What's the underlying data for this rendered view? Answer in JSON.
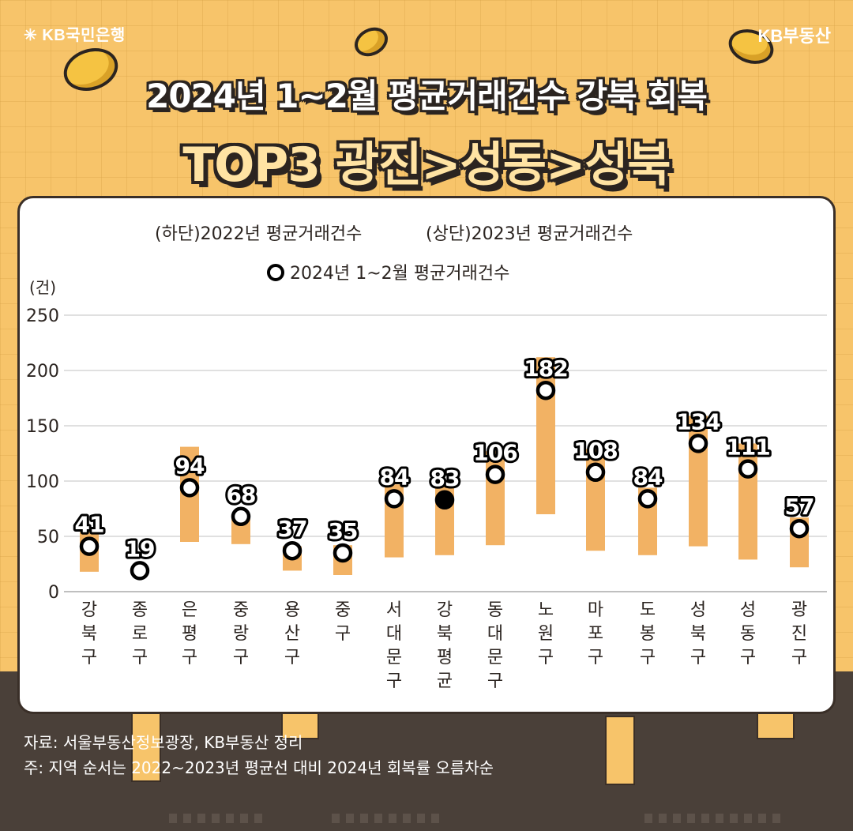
{
  "header": {
    "brand_left": "KB국민은행",
    "brand_right": "KB부동산",
    "title_line1": "2024년 1~2월 평균거래건수 강북 회복",
    "title_line2": "TOP3 광진>성동>성북"
  },
  "footer": {
    "source": "자료: 서울부동산정보광장, KB부동산 정리",
    "note": "주: 지역 순서는 2022~2023년 평균선 대비 2024년 회복률 오름차순"
  },
  "colors": {
    "background": "#f7c46a",
    "bar": "#f2b264",
    "marker_fill": "#ffffff",
    "marker_highlight": "#000000",
    "dark": "#2b2420"
  },
  "chart_data": {
    "type": "floating-bar-with-markers",
    "legend": [
      "(하단)2022년 평균거래건수",
      "(상단)2023년 평균거래건수",
      "2024년 1~2월 평균거래건수"
    ],
    "ylabel": "(건)",
    "ylim": [
      0,
      250
    ],
    "yticks": [
      0,
      50,
      100,
      150,
      200,
      250
    ],
    "grid": true,
    "categories": [
      "강북구",
      "종로구",
      "은평구",
      "중랑구",
      "용산구",
      "중구",
      "서대문구",
      "강북평균",
      "동대문구",
      "노원구",
      "마포구",
      "도봉구",
      "성북구",
      "성동구",
      "광진구"
    ],
    "series": [
      {
        "name": "(하단)2022년 평균거래건수",
        "values": [
          18,
          0,
          45,
          43,
          19,
          15,
          31,
          33,
          42,
          70,
          37,
          33,
          41,
          29,
          22
        ]
      },
      {
        "name": "(상단)2023년 평균거래건수",
        "values": [
          54,
          0,
          131,
          67,
          41,
          42,
          97,
          97,
          127,
          212,
          129,
          94,
          159,
          134,
          67
        ]
      },
      {
        "name": "2024년 1~2월 평균거래건수",
        "values": [
          41,
          19,
          94,
          68,
          37,
          35,
          84,
          83,
          106,
          182,
          108,
          84,
          134,
          111,
          57
        ]
      }
    ],
    "highlight_category": "강북평균"
  }
}
